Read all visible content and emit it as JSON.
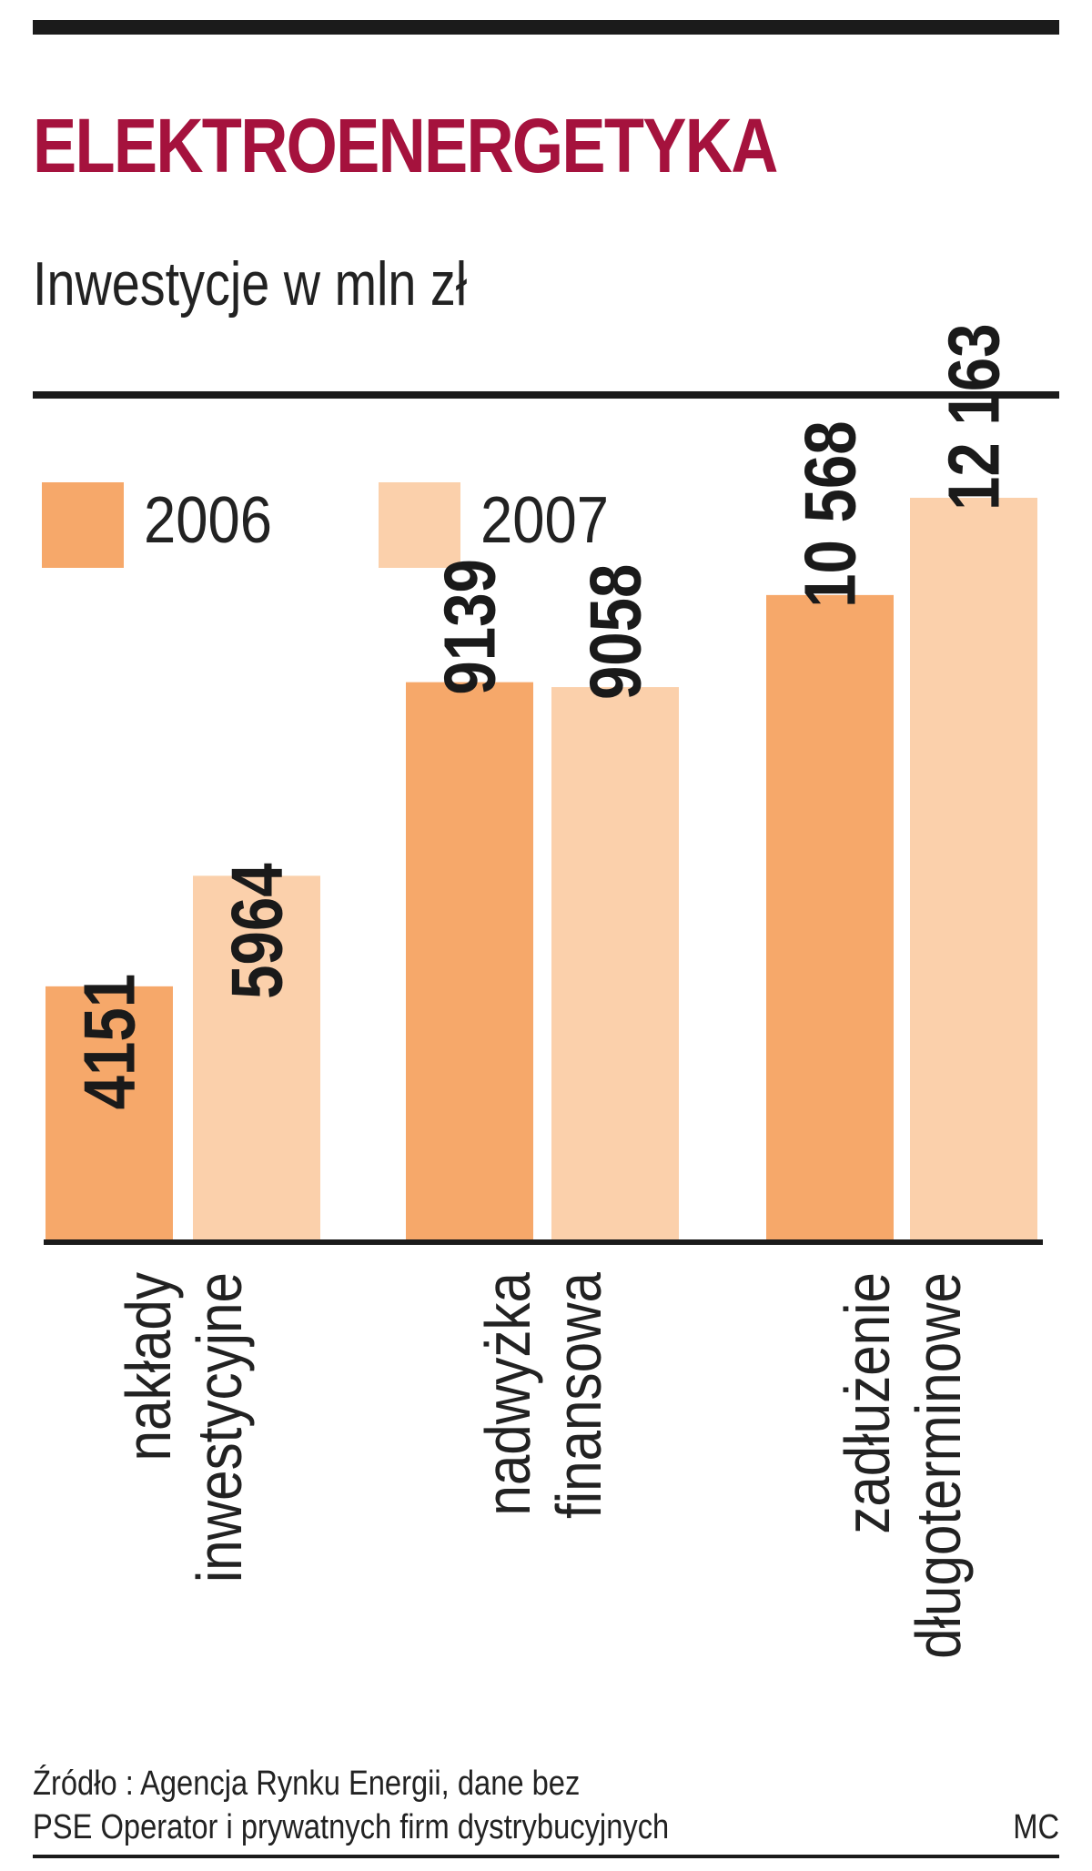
{
  "title": "ELEKTROENERGETYKA",
  "subtitle": "Inwestycje w mln zł",
  "colors": {
    "title": "#a5123d",
    "series_2006": "#f6a86a",
    "series_2007": "#fbd0ab",
    "rules": "#1b1b1b",
    "text": "#222222"
  },
  "chart_data": {
    "type": "bar",
    "title": "ELEKTROENERGETYKA",
    "subtitle": "Inwestycje w mln zł",
    "categories": [
      [
        "nakłady",
        "inwestycyjne"
      ],
      [
        "nadwyżka",
        "finansowa"
      ],
      [
        "zadłużenie",
        "długoterminowe"
      ]
    ],
    "series": [
      {
        "name": "2006",
        "values": [
          4151,
          9139,
          10568
        ],
        "labels": [
          "4151",
          "9139",
          "10 568"
        ],
        "color": "#f6a86a"
      },
      {
        "name": "2007",
        "values": [
          5964,
          9058,
          12163
        ],
        "labels": [
          "5964",
          "9058",
          "12 163"
        ],
        "color": "#fbd0ab"
      }
    ],
    "ylim": [
      0,
      12163
    ],
    "grid": false,
    "legend": "top-left",
    "value_label_orientation": "vertical",
    "category_label_orientation": "vertical"
  },
  "footer": {
    "source_line1": "Źródło : Agencja Rynku Energii, dane bez",
    "source_line2": "PSE Operator i prywatnych firm dystrybucyjnych",
    "credit": "MC"
  }
}
